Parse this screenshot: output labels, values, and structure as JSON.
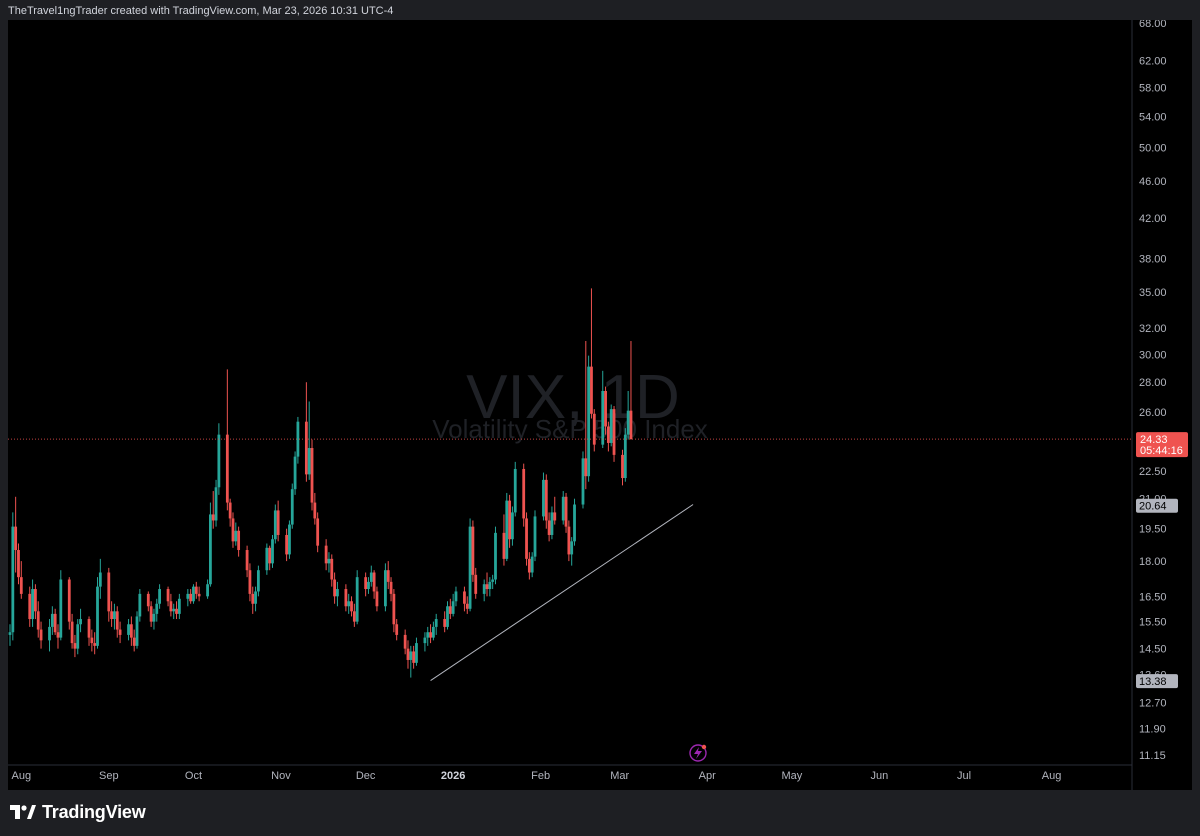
{
  "header": {
    "attribution": "TheTravel1ngTrader created with TradingView.com, Mar 23, 2026 10:31 UTC-4"
  },
  "footer": {
    "brand": "TradingView"
  },
  "colors": {
    "up": "#26a69a",
    "down": "#ef5350",
    "background": "#000000",
    "price_line": "#ef5350"
  },
  "chart_data": {
    "type": "candlestick",
    "symbol": "VIX",
    "interval": "1D",
    "watermark_title": "VIX, 1D",
    "watermark_subtitle": "Volatility S&P 500 Index",
    "y_scale": "log",
    "ylim": [
      11.15,
      68.0
    ],
    "y_ticks": [
      "68.00",
      "62.00",
      "58.00",
      "54.00",
      "50.00",
      "46.00",
      "42.00",
      "38.00",
      "35.00",
      "32.00",
      "30.00",
      "28.00",
      "26.00",
      "24.50",
      "22.50",
      "21.00",
      "19.50",
      "18.00",
      "16.50",
      "15.50",
      "14.50",
      "13.60",
      "12.70",
      "11.90",
      "11.15"
    ],
    "x_ticks": [
      {
        "label": "Aug",
        "bold": false
      },
      {
        "label": "Sep",
        "bold": false
      },
      {
        "label": "Oct",
        "bold": false
      },
      {
        "label": "Nov",
        "bold": false
      },
      {
        "label": "Dec",
        "bold": false
      },
      {
        "label": "2026",
        "bold": true
      },
      {
        "label": "Feb",
        "bold": false
      },
      {
        "label": "Mar",
        "bold": false
      },
      {
        "label": "Apr",
        "bold": false
      },
      {
        "label": "May",
        "bold": false
      },
      {
        "label": "Jun",
        "bold": false
      },
      {
        "label": "Jul",
        "bold": false
      },
      {
        "label": "Aug",
        "bold": false
      }
    ],
    "last_price": {
      "value": "24.33",
      "countdown": "05:44:16"
    },
    "marked_prices": [
      "20.64",
      "13.38"
    ],
    "trendline": {
      "start": {
        "date": "2025-12-24",
        "value": 13.4
      },
      "end": {
        "date": "2026-03-27",
        "value": 20.7
      }
    },
    "candles_ohlc": [
      [
        15.0,
        15.4,
        14.6,
        15.1
      ],
      [
        15.1,
        20.3,
        14.8,
        19.6
      ],
      [
        19.6,
        21.1,
        17.5,
        18.5
      ],
      [
        18.5,
        18.8,
        17.0,
        17.3
      ],
      [
        17.3,
        18.0,
        16.4,
        16.6
      ],
      [
        16.6,
        16.9,
        15.3,
        15.6
      ],
      [
        15.6,
        17.2,
        15.3,
        16.8
      ],
      [
        16.8,
        17.0,
        15.6,
        15.9
      ],
      [
        15.9,
        16.3,
        14.9,
        15.2
      ],
      [
        15.2,
        15.5,
        14.5,
        14.8
      ],
      [
        14.8,
        15.6,
        14.4,
        15.3
      ],
      [
        15.3,
        16.1,
        15.0,
        15.8
      ],
      [
        15.8,
        16.0,
        15.0,
        15.1
      ],
      [
        15.1,
        15.4,
        14.5,
        14.9
      ],
      [
        14.9,
        17.6,
        14.8,
        17.2
      ],
      [
        17.2,
        17.3,
        15.2,
        15.5
      ],
      [
        15.5,
        15.8,
        14.5,
        14.7
      ],
      [
        14.7,
        15.0,
        14.2,
        14.5
      ],
      [
        14.5,
        15.6,
        14.3,
        15.4
      ],
      [
        15.4,
        16.0,
        15.1,
        15.6
      ],
      [
        15.6,
        15.7,
        14.6,
        14.9
      ],
      [
        14.9,
        15.2,
        14.4,
        14.7
      ],
      [
        14.7,
        15.1,
        14.3,
        14.6
      ],
      [
        14.6,
        17.3,
        14.5,
        16.9
      ],
      [
        16.9,
        18.1,
        16.4,
        17.5
      ],
      [
        17.5,
        17.7,
        15.5,
        15.9
      ],
      [
        15.9,
        16.3,
        15.3,
        15.6
      ],
      [
        15.6,
        16.2,
        15.2,
        15.9
      ],
      [
        15.9,
        16.1,
        14.9,
        15.2
      ],
      [
        15.2,
        15.5,
        14.7,
        15.0
      ],
      [
        15.0,
        15.6,
        14.8,
        15.4
      ],
      [
        15.4,
        15.7,
        14.6,
        14.9
      ],
      [
        14.9,
        15.2,
        14.4,
        14.6
      ],
      [
        14.6,
        15.9,
        14.5,
        15.7
      ],
      [
        15.7,
        16.8,
        15.5,
        16.6
      ],
      [
        16.6,
        16.7,
        15.9,
        16.1
      ],
      [
        16.1,
        16.3,
        15.3,
        15.5
      ],
      [
        15.5,
        16.0,
        15.2,
        15.8
      ],
      [
        15.8,
        16.4,
        15.5,
        16.2
      ],
      [
        16.2,
        17.0,
        16.0,
        16.8
      ],
      [
        16.8,
        16.9,
        16.1,
        16.3
      ],
      [
        16.3,
        16.6,
        15.7,
        15.9
      ],
      [
        15.9,
        16.2,
        15.6,
        16.0
      ],
      [
        16.0,
        16.3,
        15.6,
        15.8
      ],
      [
        15.8,
        16.6,
        15.6,
        16.4
      ],
      [
        16.4,
        16.8,
        16.1,
        16.6
      ],
      [
        16.6,
        16.8,
        16.2,
        16.3
      ],
      [
        16.3,
        17.0,
        16.2,
        16.9
      ],
      [
        16.9,
        17.1,
        16.4,
        16.6
      ],
      [
        16.6,
        16.9,
        16.3,
        16.5
      ],
      [
        16.5,
        17.2,
        16.4,
        17.0
      ],
      [
        17.0,
        20.8,
        16.9,
        20.2
      ],
      [
        20.2,
        21.4,
        19.5,
        19.9
      ],
      [
        19.9,
        22.0,
        19.6,
        21.6
      ],
      [
        21.6,
        25.3,
        21.2,
        24.6
      ],
      [
        24.6,
        28.9,
        20.4,
        20.8
      ],
      [
        20.8,
        21.0,
        19.6,
        20.0
      ],
      [
        20.0,
        20.3,
        18.6,
        18.9
      ],
      [
        18.9,
        19.8,
        18.7,
        19.4
      ],
      [
        19.4,
        19.6,
        18.2,
        18.5
      ],
      [
        18.5,
        18.7,
        17.3,
        17.6
      ],
      [
        17.6,
        17.9,
        16.3,
        16.6
      ],
      [
        16.6,
        16.9,
        15.8,
        16.2
      ],
      [
        16.2,
        16.9,
        15.9,
        16.7
      ],
      [
        16.7,
        17.8,
        16.5,
        17.6
      ],
      [
        17.6,
        18.8,
        17.4,
        18.6
      ],
      [
        18.6,
        18.7,
        17.6,
        17.9
      ],
      [
        17.9,
        19.2,
        17.7,
        19.0
      ],
      [
        19.0,
        20.7,
        18.8,
        20.4
      ],
      [
        20.4,
        20.9,
        18.9,
        19.2
      ],
      [
        19.2,
        19.5,
        18.0,
        18.3
      ],
      [
        18.3,
        19.9,
        18.1,
        19.7
      ],
      [
        19.7,
        21.8,
        19.5,
        21.5
      ],
      [
        21.5,
        23.6,
        21.2,
        23.3
      ],
      [
        23.3,
        25.7,
        22.9,
        25.4
      ],
      [
        25.4,
        28.0,
        21.9,
        22.3
      ],
      [
        22.3,
        26.7,
        22.0,
        23.8
      ],
      [
        23.8,
        24.3,
        20.4,
        20.8
      ],
      [
        20.8,
        21.3,
        19.7,
        20.0
      ],
      [
        20.0,
        20.3,
        18.4,
        18.7
      ],
      [
        18.7,
        19.0,
        17.6,
        17.9
      ],
      [
        17.9,
        18.4,
        17.5,
        18.1
      ],
      [
        18.1,
        18.3,
        16.9,
        17.2
      ],
      [
        17.2,
        17.5,
        16.2,
        16.5
      ],
      [
        16.5,
        17.1,
        16.1,
        16.8
      ],
      [
        16.8,
        17.0,
        15.9,
        16.1
      ],
      [
        16.1,
        16.6,
        15.8,
        16.3
      ],
      [
        16.3,
        16.5,
        15.7,
        15.9
      ],
      [
        15.9,
        16.2,
        15.3,
        15.5
      ],
      [
        15.5,
        17.6,
        15.4,
        17.3
      ],
      [
        17.3,
        17.5,
        16.5,
        16.8
      ],
      [
        16.8,
        17.3,
        16.6,
        17.1
      ],
      [
        17.1,
        17.8,
        16.9,
        17.5
      ],
      [
        17.5,
        17.6,
        16.4,
        16.7
      ],
      [
        16.7,
        16.9,
        15.9,
        16.1
      ],
      [
        16.1,
        17.9,
        15.9,
        17.6
      ],
      [
        17.6,
        18.0,
        16.8,
        17.1
      ],
      [
        17.1,
        17.3,
        16.3,
        16.6
      ],
      [
        16.6,
        16.8,
        15.1,
        15.4
      ],
      [
        15.4,
        15.6,
        14.8,
        15.0
      ],
      [
        15.0,
        15.2,
        14.3,
        14.5
      ],
      [
        14.5,
        14.8,
        13.8,
        14.1
      ],
      [
        14.1,
        14.6,
        13.5,
        14.4
      ],
      [
        14.4,
        14.6,
        13.8,
        14.0
      ],
      [
        14.0,
        14.9,
        13.9,
        14.7
      ],
      [
        14.7,
        15.1,
        14.4,
        14.9
      ],
      [
        14.9,
        15.3,
        14.6,
        15.1
      ],
      [
        15.1,
        15.4,
        14.7,
        14.9
      ],
      [
        14.9,
        15.5,
        14.8,
        15.3
      ],
      [
        15.3,
        15.8,
        15.0,
        15.6
      ],
      [
        15.6,
        15.9,
        15.1,
        15.3
      ],
      [
        15.3,
        16.3,
        15.2,
        16.1
      ],
      [
        16.1,
        16.4,
        15.6,
        15.8
      ],
      [
        15.8,
        16.6,
        15.7,
        16.3
      ],
      [
        16.3,
        16.9,
        16.1,
        16.7
      ],
      [
        16.7,
        16.9,
        15.9,
        16.2
      ],
      [
        16.2,
        16.5,
        15.8,
        16.0
      ],
      [
        16.0,
        20.0,
        15.9,
        19.6
      ],
      [
        19.6,
        19.9,
        17.1,
        17.4
      ],
      [
        17.4,
        17.7,
        16.4,
        16.6
      ],
      [
        16.6,
        17.2,
        16.3,
        17.0
      ],
      [
        17.0,
        17.5,
        16.5,
        16.8
      ],
      [
        16.8,
        17.3,
        16.5,
        17.1
      ],
      [
        17.1,
        17.4,
        16.8,
        17.2
      ],
      [
        17.2,
        19.6,
        17.0,
        19.3
      ],
      [
        19.3,
        20.2,
        17.8,
        18.1
      ],
      [
        18.1,
        21.3,
        18.0,
        20.9
      ],
      [
        20.9,
        21.2,
        18.6,
        19.0
      ],
      [
        19.0,
        20.6,
        18.7,
        20.3
      ],
      [
        20.3,
        23.0,
        20.1,
        22.6
      ],
      [
        22.6,
        22.9,
        19.6,
        20.0
      ],
      [
        20.0,
        20.3,
        17.8,
        18.1
      ],
      [
        18.1,
        18.4,
        17.2,
        17.5
      ],
      [
        17.5,
        18.4,
        17.3,
        18.2
      ],
      [
        18.2,
        20.4,
        18.0,
        20.1
      ],
      [
        20.1,
        22.4,
        19.9,
        22.0
      ],
      [
        22.0,
        22.3,
        19.5,
        19.9
      ],
      [
        19.9,
        20.3,
        18.9,
        19.2
      ],
      [
        19.2,
        20.6,
        19.0,
        20.3
      ],
      [
        20.3,
        21.1,
        19.7,
        19.9
      ],
      [
        19.9,
        21.4,
        19.7,
        21.1
      ],
      [
        21.1,
        21.3,
        19.3,
        19.6
      ],
      [
        19.6,
        19.9,
        18.0,
        18.3
      ],
      [
        18.3,
        19.1,
        17.8,
        18.9
      ],
      [
        18.9,
        21.0,
        18.7,
        20.7
      ],
      [
        20.7,
        23.6,
        20.5,
        23.2
      ],
      [
        23.2,
        31.0,
        21.5,
        22.2
      ],
      [
        22.2,
        29.9,
        21.9,
        29.1
      ],
      [
        29.1,
        35.3,
        25.6,
        25.9
      ],
      [
        25.9,
        26.2,
        23.6,
        24.0
      ],
      [
        24.0,
        28.8,
        23.8,
        27.4
      ],
      [
        27.4,
        27.7,
        24.6,
        25.1
      ],
      [
        25.1,
        25.4,
        23.6,
        24.1
      ],
      [
        24.1,
        26.5,
        23.9,
        26.2
      ],
      [
        26.2,
        26.4,
        23.0,
        23.4
      ],
      [
        23.4,
        23.7,
        21.7,
        22.1
      ],
      [
        22.1,
        25.0,
        21.9,
        24.6
      ],
      [
        24.6,
        27.4,
        24.3,
        26.1
      ],
      [
        26.1,
        31.0,
        24.3,
        24.33
      ]
    ]
  }
}
